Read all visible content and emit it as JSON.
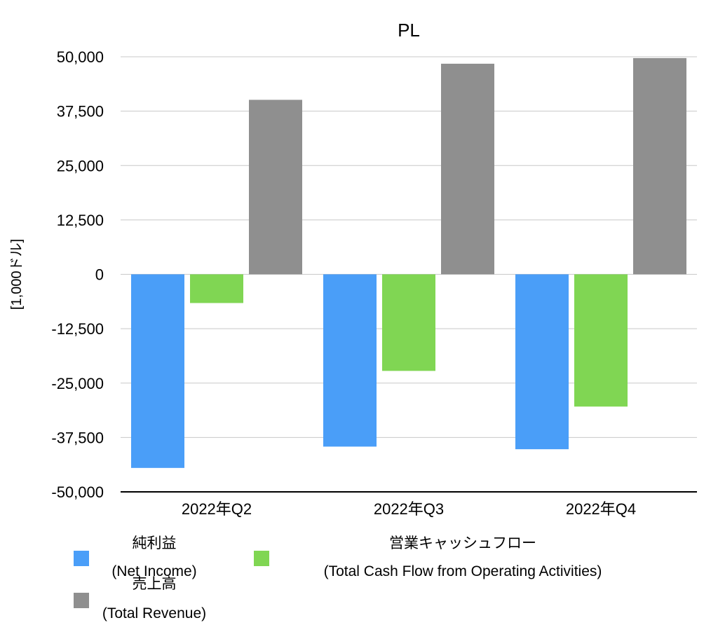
{
  "chart_data": {
    "type": "bar",
    "title": "PL",
    "ylabel": "[1,000ドル]",
    "xlabel": "",
    "ylim": [
      -50000,
      50000
    ],
    "yticks": [
      50000,
      37500,
      25000,
      12500,
      0,
      -12500,
      -25000,
      -37500,
      -50000
    ],
    "ytick_labels": [
      "50,000",
      "37,500",
      "25,000",
      "12,500",
      "0",
      "-12,500",
      "-25,000",
      "-37,500",
      "-50,000"
    ],
    "categories": [
      "2022年Q2",
      "2022年Q3",
      "2022年Q4"
    ],
    "grid": true,
    "series": [
      {
        "name": "純利益",
        "name_en": "(Net Income)",
        "color": "#4a9ef8",
        "values": [
          -44500,
          -39600,
          -40200
        ]
      },
      {
        "name": "営業キャッシュフロー",
        "name_en": "(Total Cash Flow from Operating Activities)",
        "color": "#80d653",
        "values": [
          -6600,
          -22200,
          -30400
        ]
      },
      {
        "name": "売上高",
        "name_en": "(Total Revenue)",
        "color": "#8f8f8f",
        "values": [
          40100,
          48400,
          49700
        ]
      }
    ],
    "legend_position": "bottom"
  }
}
